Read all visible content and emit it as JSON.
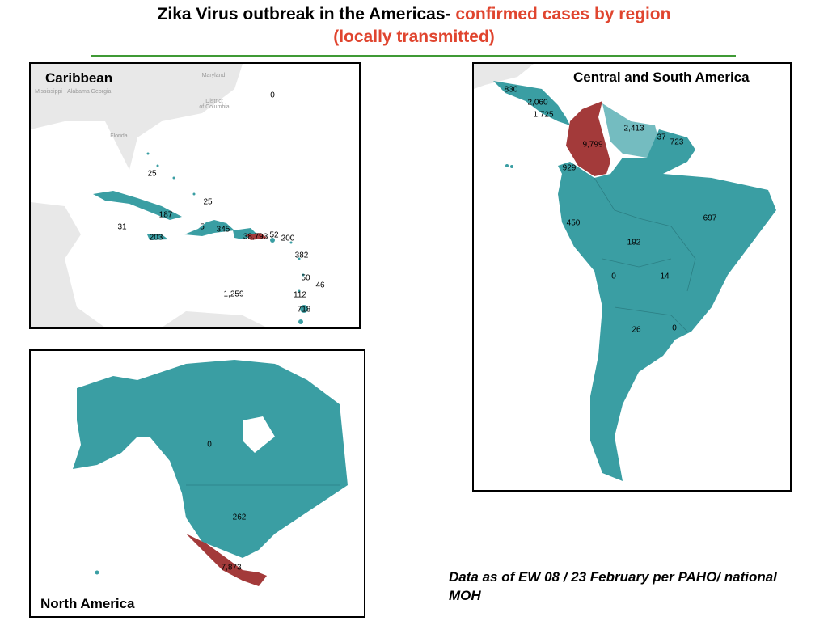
{
  "header": {
    "title": "Zika Virus outbreak in the Americas-",
    "title_highlight": "confirmed cases by region (locally transmitted)"
  },
  "panels": [
    {
      "title": "Caribbean",
      "basemap_labels": [
        "Maryland",
        "District",
        "of Columbia",
        "Florida",
        "Mississippi",
        "Alabama",
        "Georgia"
      ],
      "labels": [
        "0",
        "25",
        "25",
        "187",
        "31",
        "5",
        "345",
        "203",
        "38,793",
        "52",
        "200",
        "382",
        "50",
        "46",
        "112",
        "1,259",
        "718"
      ]
    },
    {
      "title": "Central and South America",
      "labels": [
        "830",
        "2,060",
        "1,725",
        "2,413",
        "37",
        "723",
        "9,799",
        "929",
        "697",
        "450",
        "192",
        "0",
        "14",
        "26",
        "0"
      ]
    },
    {
      "title": "North America",
      "labels": [
        "0",
        "262",
        "7,873"
      ]
    }
  ],
  "footnote": "Data as of EW 08 / 23 February per PAHO/ national MOH"
}
